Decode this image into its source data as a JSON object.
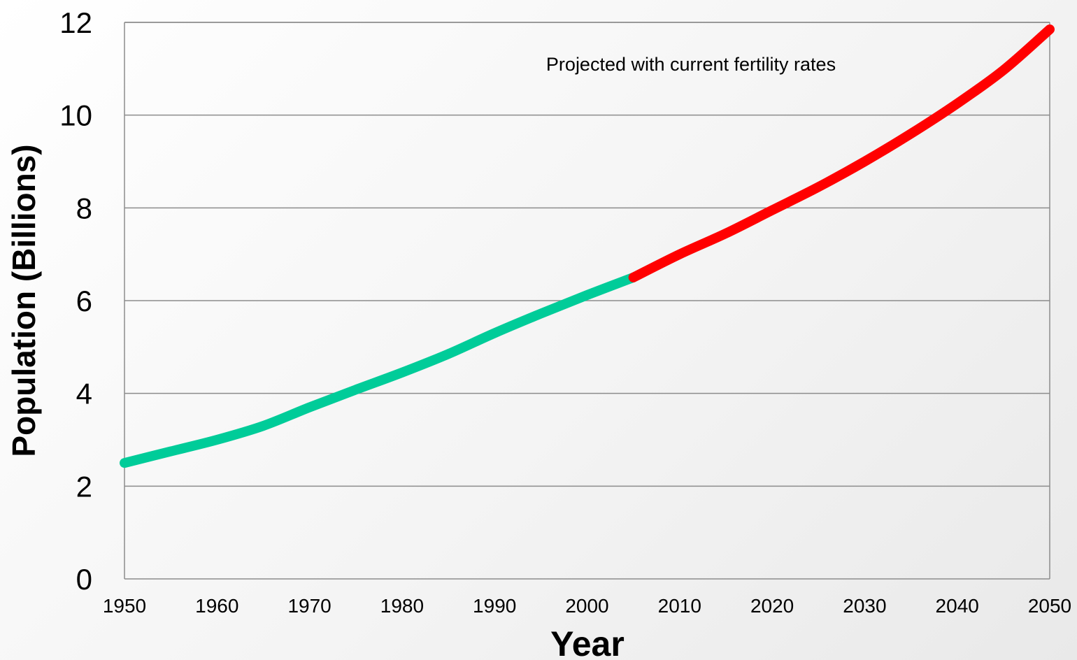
{
  "chart_data": {
    "type": "line",
    "xlabel": "Year",
    "ylabel": "Population (Billions)",
    "xlim": [
      1950,
      2050
    ],
    "ylim": [
      0,
      12
    ],
    "x_ticks": [
      "1950",
      "1960",
      "1970",
      "1980",
      "1990",
      "2000",
      "2010",
      "2020",
      "2030",
      "2040",
      "2050"
    ],
    "y_ticks": [
      "0",
      "2",
      "4",
      "6",
      "8",
      "10",
      "12"
    ],
    "grid": "horizontal",
    "annotation": "Projected with current fertility rates",
    "series": [
      {
        "color": "#00cc99",
        "x": [
          1950,
          1955,
          1960,
          1965,
          1970,
          1975,
          1980,
          1985,
          1990,
          1995,
          2000,
          2005
        ],
        "y": [
          2.5,
          2.75,
          3.0,
          3.3,
          3.7,
          4.08,
          4.45,
          4.85,
          5.3,
          5.72,
          6.12,
          6.5
        ]
      },
      {
        "color": "#ff0000",
        "x": [
          2005,
          2010,
          2015,
          2020,
          2025,
          2030,
          2035,
          2040,
          2045,
          2050
        ],
        "y": [
          6.5,
          7.0,
          7.45,
          7.95,
          8.45,
          9.0,
          9.6,
          10.25,
          10.97,
          11.85
        ]
      }
    ]
  }
}
